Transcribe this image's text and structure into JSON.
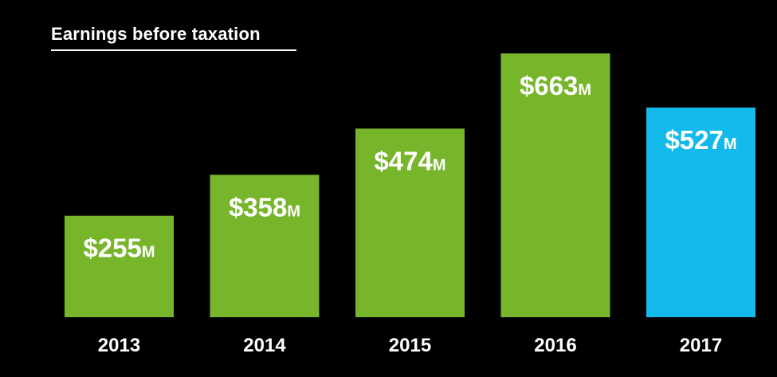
{
  "chart_data": {
    "type": "bar",
    "title": "Earnings before taxation",
    "categories": [
      "2013",
      "2014",
      "2015",
      "2016",
      "2017"
    ],
    "values": [
      255,
      358,
      474,
      663,
      527
    ],
    "value_labels": [
      {
        "amount": "$255",
        "unit": "M"
      },
      {
        "amount": "$358",
        "unit": "M"
      },
      {
        "amount": "$474",
        "unit": "M"
      },
      {
        "amount": "$663",
        "unit": "M"
      },
      {
        "amount": "$527",
        "unit": "M"
      }
    ],
    "bar_colors": [
      "#77b52b",
      "#77b52b",
      "#77b52b",
      "#77b52b",
      "#12b9ea"
    ],
    "ylim": [
      0,
      663
    ],
    "grid": false,
    "xlabel": "",
    "ylabel": ""
  },
  "colors": {
    "background": "#000000",
    "text": "#ffffff"
  }
}
